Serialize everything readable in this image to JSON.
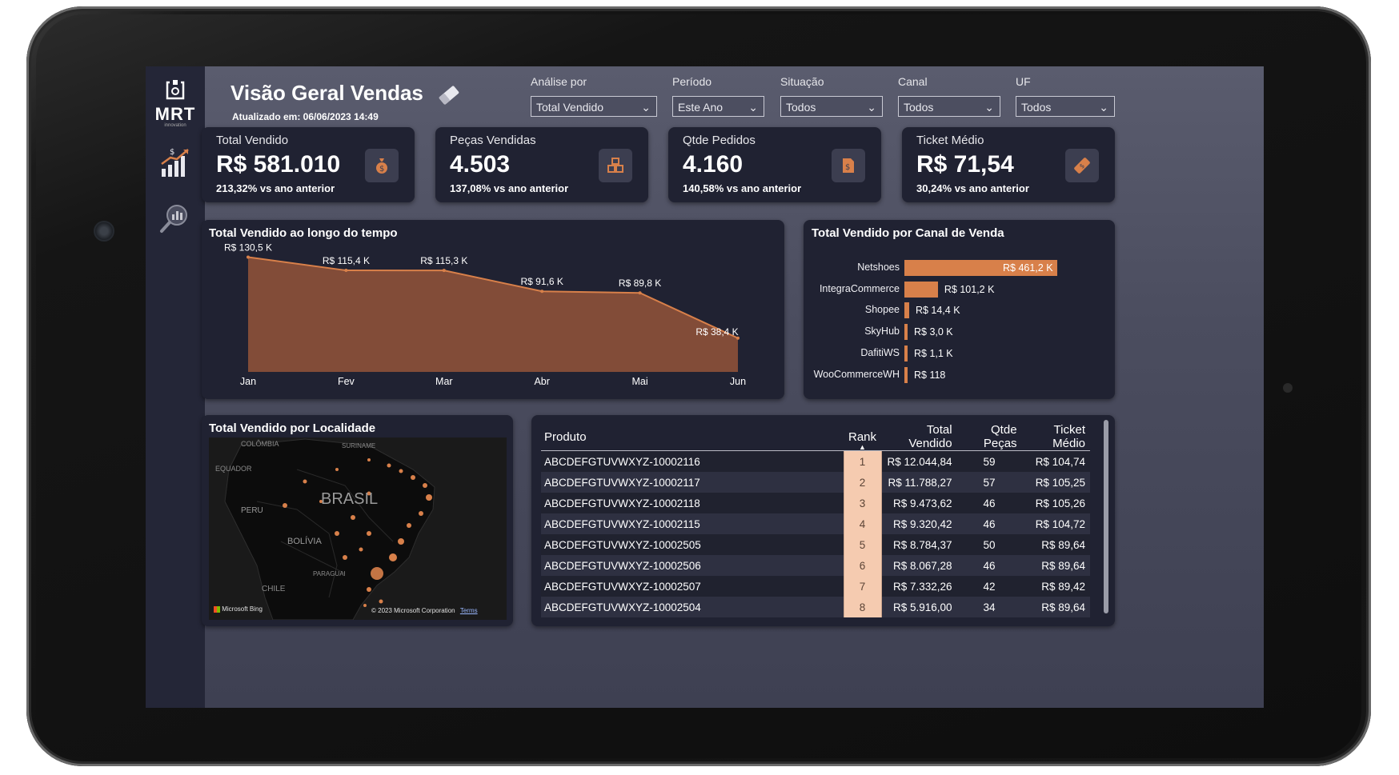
{
  "header": {
    "title": "Visão Geral Vendas",
    "updated": "Atualizado em: 06/06/2023 14:49"
  },
  "logo": {
    "name": "MRT",
    "sub": "innovation"
  },
  "filters": [
    {
      "label": "Análise por",
      "value": "Total Vendido"
    },
    {
      "label": "Período",
      "value": "Este Ano"
    },
    {
      "label": "Situação",
      "value": "Todos"
    },
    {
      "label": "Canal",
      "value": "Todos"
    },
    {
      "label": "UF",
      "value": "Todos"
    }
  ],
  "kpis": [
    {
      "title": "Total Vendido",
      "value": "R$ 581.010",
      "sub": "213,32% vs ano anterior",
      "icon": "money-bag-icon"
    },
    {
      "title": "Peças Vendidas",
      "value": "4.503",
      "sub": "137,08% vs ano anterior",
      "icon": "boxes-icon"
    },
    {
      "title": "Qtde Pedidos",
      "value": "4.160",
      "sub": "140,58% vs ano anterior",
      "icon": "order-icon"
    },
    {
      "title": "Ticket Médio",
      "value": "R$ 71,54",
      "sub": "30,24% vs ano anterior",
      "icon": "ticket-icon"
    }
  ],
  "colors": {
    "accent": "#d8804a",
    "area": "#8b5038",
    "card": "#202232"
  },
  "panels": {
    "time_title": "Total Vendido ao longo do tempo",
    "channel_title": "Total Vendido por Canal de Venda",
    "map_title": "Total Vendido por Localidade"
  },
  "map": {
    "labels": [
      "COLÔMBIA",
      "SURINAME",
      "EQUADOR",
      "BRASIL",
      "PERU",
      "BOLÍVIA",
      "PARAGUAI",
      "CHILE"
    ],
    "attribution": "Microsoft Bing",
    "copyright": "© 2023 Microsoft Corporation",
    "terms": "Terms"
  },
  "chart_data": [
    {
      "type": "area",
      "title": "Total Vendido ao longo do tempo",
      "categories": [
        "Jan",
        "Fev",
        "Mar",
        "Abr",
        "Mai",
        "Jun"
      ],
      "values": [
        130.5,
        115.4,
        115.3,
        91.6,
        89.8,
        38.4
      ],
      "labels": [
        "R$ 130,5 K",
        "R$ 115,4 K",
        "R$ 115,3 K",
        "R$ 91,6 K",
        "R$ 89,8 K",
        "R$ 38,4 K"
      ],
      "unit": "R$ K",
      "ylim": [
        0,
        140
      ]
    },
    {
      "type": "bar",
      "orientation": "horizontal",
      "title": "Total Vendido por Canal de Venda",
      "categories": [
        "Netshoes",
        "IntegraCommerce",
        "Shopee",
        "SkyHub",
        "DafitiWS",
        "WooCommerceWH"
      ],
      "values": [
        461.2,
        101.2,
        14.4,
        3.0,
        1.1,
        0.118
      ],
      "labels": [
        "R$ 461,2 K",
        "R$ 101,2 K",
        "R$ 14,4 K",
        "R$ 3,0 K",
        "R$ 1,1 K",
        "R$ 118"
      ],
      "unit": "R$ K"
    }
  ],
  "table": {
    "headers": [
      "Produto",
      "Rank",
      "Total Vendido",
      "Qtde Peças",
      "Ticket Médio"
    ],
    "rows": [
      [
        "ABCDEFGTUVWXYZ-10002116",
        "1",
        "R$ 12.044,84",
        "59",
        "R$ 104,74"
      ],
      [
        "ABCDEFGTUVWXYZ-10002117",
        "2",
        "R$ 11.788,27",
        "57",
        "R$ 105,25"
      ],
      [
        "ABCDEFGTUVWXYZ-10002118",
        "3",
        "R$ 9.473,62",
        "46",
        "R$ 105,26"
      ],
      [
        "ABCDEFGTUVWXYZ-10002115",
        "4",
        "R$ 9.320,42",
        "46",
        "R$ 104,72"
      ],
      [
        "ABCDEFGTUVWXYZ-10002505",
        "5",
        "R$ 8.784,37",
        "50",
        "R$ 89,64"
      ],
      [
        "ABCDEFGTUVWXYZ-10002506",
        "6",
        "R$ 8.067,28",
        "46",
        "R$ 89,64"
      ],
      [
        "ABCDEFGTUVWXYZ-10002507",
        "7",
        "R$ 7.332,26",
        "42",
        "R$ 89,42"
      ],
      [
        "ABCDEFGTUVWXYZ-10002504",
        "8",
        "R$ 5.916,00",
        "34",
        "R$ 89,64"
      ]
    ]
  }
}
